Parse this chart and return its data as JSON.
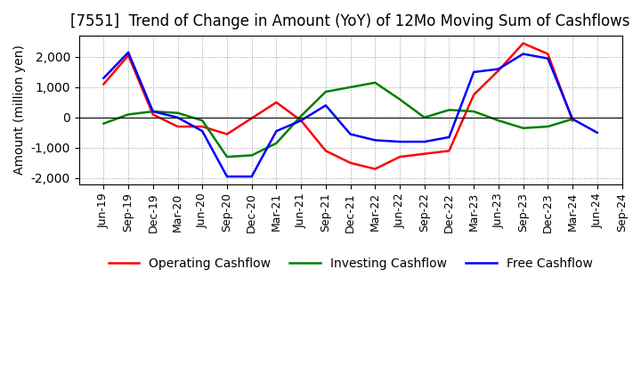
{
  "title": "[7551]  Trend of Change in Amount (YoY) of 12Mo Moving Sum of Cashflows",
  "ylabel": "Amount (million yen)",
  "xlabels": [
    "Jun-19",
    "Sep-19",
    "Dec-19",
    "Mar-20",
    "Jun-20",
    "Sep-20",
    "Dec-20",
    "Mar-21",
    "Jun-21",
    "Sep-21",
    "Dec-21",
    "Mar-22",
    "Jun-22",
    "Sep-22",
    "Dec-22",
    "Mar-23",
    "Jun-23",
    "Sep-23",
    "Dec-23",
    "Mar-24",
    "Jun-24",
    "Sep-24"
  ],
  "operating": [
    1100,
    2050,
    100,
    -300,
    -300,
    -550,
    null,
    500,
    -100,
    -1100,
    -1500,
    -1700,
    -1300,
    -1200,
    -1100,
    750,
    1550,
    2450,
    2100,
    -100,
    null,
    null
  ],
  "investing": [
    -200,
    100,
    200,
    150,
    -100,
    -1300,
    -1250,
    -850,
    50,
    850,
    1000,
    1150,
    600,
    0,
    250,
    200,
    -100,
    -350,
    -300,
    -50,
    null,
    null
  ],
  "free": [
    1300,
    2150,
    200,
    0,
    -450,
    -1950,
    -1950,
    -450,
    -100,
    400,
    -550,
    -750,
    -800,
    -800,
    -650,
    1500,
    1600,
    2100,
    1950,
    -50,
    -500,
    null
  ],
  "ylim": [
    -2200,
    2700
  ],
  "yticks": [
    -2000,
    -1000,
    0,
    1000,
    2000
  ],
  "operating_color": "#ff0000",
  "investing_color": "#008000",
  "free_color": "#0000ff",
  "bg_color": "#ffffff",
  "grid_color": "#999999",
  "title_fontsize": 12,
  "axis_fontsize": 9,
  "legend_fontsize": 10,
  "linewidth": 1.8
}
